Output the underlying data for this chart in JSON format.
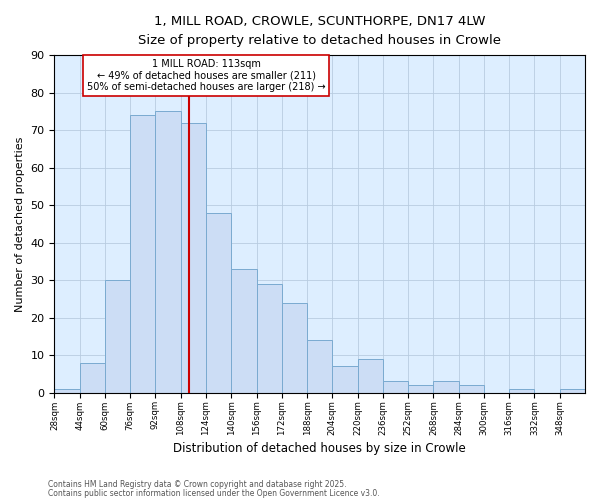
{
  "title": "1, MILL ROAD, CROWLE, SCUNTHORPE, DN17 4LW",
  "subtitle": "Size of property relative to detached houses in Crowle",
  "xlabel": "Distribution of detached houses by size in Crowle",
  "ylabel": "Number of detached properties",
  "bar_color": "#ccddf5",
  "bar_edge_color": "#7aaad0",
  "background_color": "#ffffff",
  "plot_bg_color": "#ddeeff",
  "grid_color": "#b8cce0",
  "bins": [
    28,
    44,
    60,
    76,
    92,
    108,
    124,
    140,
    156,
    172,
    188,
    204,
    220,
    236,
    252,
    268,
    284,
    300,
    316,
    332,
    348
  ],
  "bin_labels": [
    "28sqm",
    "44sqm",
    "60sqm",
    "76sqm",
    "92sqm",
    "108sqm",
    "124sqm",
    "140sqm",
    "156sqm",
    "172sqm",
    "188sqm",
    "204sqm",
    "220sqm",
    "236sqm",
    "252sqm",
    "268sqm",
    "284sqm",
    "300sqm",
    "316sqm",
    "332sqm",
    "348sqm"
  ],
  "values": [
    1,
    8,
    30,
    74,
    75,
    72,
    48,
    33,
    29,
    24,
    14,
    7,
    9,
    3,
    2,
    3,
    2,
    0,
    1,
    0,
    1
  ],
  "vline_x": 113,
  "vline_color": "#cc0000",
  "annotation_line1": "1 MILL ROAD: 113sqm",
  "annotation_line2": "← 49% of detached houses are smaller (211)",
  "annotation_line3": "50% of semi-detached houses are larger (218) →",
  "annotation_box_color": "#ffffff",
  "annotation_box_edge": "#cc0000",
  "ylim": [
    0,
    90
  ],
  "xlim": [
    28,
    364
  ],
  "yticks": [
    0,
    10,
    20,
    30,
    40,
    50,
    60,
    70,
    80,
    90
  ],
  "footnote1": "Contains HM Land Registry data © Crown copyright and database right 2025.",
  "footnote2": "Contains public sector information licensed under the Open Government Licence v3.0."
}
